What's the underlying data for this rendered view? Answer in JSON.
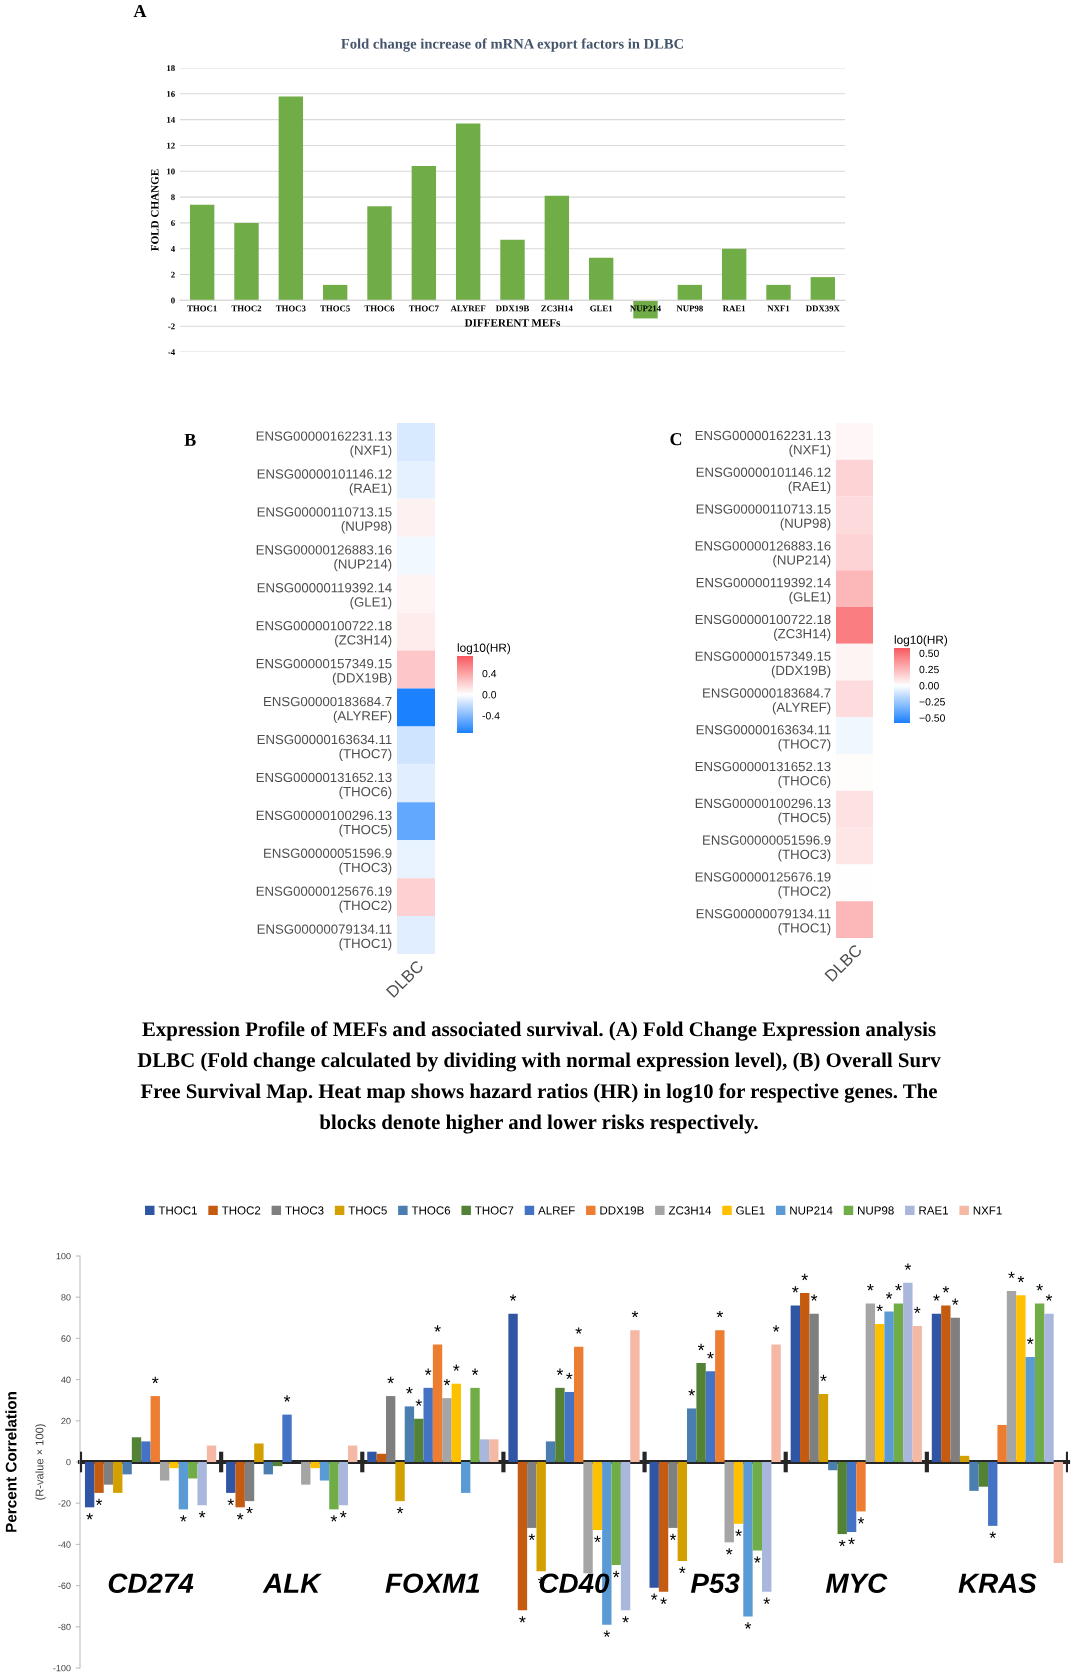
{
  "chart_data": [
    {
      "type": "bar",
      "title": "Fold change increase of mRNA export factors in DLBC",
      "xlabel": "DIFFERENT MEFs",
      "ylabel": "FOLD CHANGE",
      "annotations": [
        "A"
      ],
      "categories": [
        "THOC1",
        "THOC2",
        "THOC3",
        "THOC5",
        "THOC6",
        "THOC7",
        "ALYREF",
        "DDX19B",
        "ZC3H14",
        "GLE1",
        "NUP214",
        "NUP98",
        "RAE1",
        "NXF1",
        "DDX39X"
      ],
      "values": [
        7.4,
        6.0,
        15.8,
        1.2,
        7.3,
        10.4,
        13.7,
        4.7,
        8.1,
        3.3,
        -1.4,
        1.2,
        4.0,
        1.2,
        1.8
      ],
      "color": "#70ad47",
      "ylim": [
        -4,
        18
      ],
      "yticks": [
        -4,
        -2,
        0,
        2,
        4,
        6,
        8,
        10,
        12,
        14,
        16,
        18
      ],
      "grid": "y",
      "legend": false
    },
    {
      "type": "heatmap",
      "annotations": [
        "B"
      ],
      "clabel": "log10(HR)",
      "categories": [
        "DLBC"
      ],
      "y_categories": [
        "ENSG00000162231.13\n(NXF1)",
        "ENSG00000101146.12\n(RAE1)",
        "ENSG00000110713.15\n(NUP98)",
        "ENSG00000126883.16\n(NUP214)",
        "ENSG00000119392.14\n(GLE1)",
        "ENSG00000100722.18\n(ZC3H14)",
        "ENSG00000157349.15\n(DDX19B)",
        "ENSG00000183684.7\n(ALYREF)",
        "ENSG00000163634.11\n(THOC7)",
        "ENSG00000131652.13\n(THOC6)",
        "ENSG00000100296.13\n(THOC5)",
        "ENSG00000051596.9\n(THOC3)",
        "ENSG00000125676.19\n(THOC2)",
        "ENSG00000079134.11\n(THOC1)"
      ],
      "cells": [
        [
          -0.12
        ],
        [
          -0.08
        ],
        [
          0.06
        ],
        [
          -0.04
        ],
        [
          0.05
        ],
        [
          0.08
        ],
        [
          0.25
        ],
        [
          -0.72
        ],
        [
          -0.15
        ],
        [
          -0.1
        ],
        [
          -0.5
        ],
        [
          -0.07
        ],
        [
          0.2
        ],
        [
          -0.1
        ]
      ],
      "clim": [
        -0.73,
        0.73
      ],
      "cticks": [
        -0.4,
        {
          "value": 0,
          "label": "0.0"
        },
        0.4
      ]
    },
    {
      "type": "heatmap",
      "annotations": [
        "C",
        "Expression Profile of MEFs and associated survival. (A) Fold Change Expression analysis",
        "DLBC (Fold change calculated by dividing with normal expression level), (B) Overall Surv",
        "Free Survival Map. Heat map shows hazard ratios (HR) in log10 for respective genes. The",
        "blocks denote higher and lower risks respectively."
      ],
      "clabel": "log10(HR)",
      "categories": [
        "DLBC"
      ],
      "y_categories": [
        "ENSG00000162231.13\n(NXF1)",
        "ENSG00000101146.12\n(RAE1)",
        "ENSG00000110713.15\n(NUP98)",
        "ENSG00000126883.16\n(NUP214)",
        "ENSG00000119392.14\n(GLE1)",
        "ENSG00000100722.18\n(ZC3H14)",
        "ENSG00000157349.15\n(DDX19B)",
        "ENSG00000183684.7\n(ALYREF)",
        "ENSG00000163634.11\n(THOC7)",
        "ENSG00000131652.13\n(THOC6)",
        "ENSG00000100296.13\n(THOC5)",
        "ENSG00000051596.9\n(THOC3)",
        "ENSG00000125676.19\n(THOC2)",
        "ENSG00000079134.11\n(THOC1)"
      ],
      "cells": [
        [
          0.03
        ],
        [
          0.15
        ],
        [
          0.13
        ],
        [
          0.15
        ],
        [
          0.25
        ],
        [
          0.45
        ],
        [
          0.04
        ],
        [
          0.12
        ],
        [
          -0.04
        ],
        [
          0.01
        ],
        [
          0.1
        ],
        [
          0.09
        ],
        [
          0.0
        ],
        [
          0.25
        ]
      ],
      "clim": [
        -0.58,
        0.58
      ],
      "cticks": [
        {
          "value": 0.5,
          "label": "0.50"
        },
        {
          "value": 0.25,
          "label": "0.25"
        },
        {
          "value": 0.0,
          "label": "0.00"
        },
        {
          "value": -0.25,
          "label": "−0.25"
        },
        {
          "value": -0.5,
          "label": "−0.50"
        }
      ]
    },
    {
      "type": "bar",
      "ylabel": "Percent Correlation",
      "annotations": [
        "(R-value × 100)"
      ],
      "legend": "top",
      "categories": [
        "CD274",
        "ALK",
        "FOXM1",
        "CD40",
        "P53",
        "MYC",
        "KRAS"
      ],
      "ylim": [
        -100,
        100
      ],
      "yticks": [
        -100,
        -80,
        -60,
        -40,
        -20,
        0,
        20,
        40,
        60,
        80,
        100
      ],
      "series": [
        {
          "name": "THOC1",
          "color": "#2f55a4",
          "values": [
            -22,
            -15,
            5,
            72,
            -61,
            76,
            72
          ],
          "value_labels": [
            "*",
            "*",
            null,
            "*",
            "*",
            "*",
            "*"
          ]
        },
        {
          "name": "THOC2",
          "color": "#c55a11",
          "values": [
            -15,
            -22,
            4,
            -72,
            -63,
            82,
            76
          ],
          "value_labels": [
            "*",
            "*",
            null,
            "*",
            "*",
            "*",
            "*"
          ]
        },
        {
          "name": "THOC3",
          "color": "#7f7f7f",
          "values": [
            -11,
            -19,
            32,
            -32,
            -32,
            72,
            70
          ],
          "value_labels": [
            null,
            "*",
            "*",
            "*",
            "*",
            "*",
            "*"
          ]
        },
        {
          "name": "THOC5",
          "color": "#d4a000",
          "values": [
            -15,
            9,
            -19,
            -53,
            -48,
            33,
            3
          ],
          "value_labels": [
            null,
            null,
            "*",
            "*",
            "*",
            "*",
            null
          ]
        },
        {
          "name": "THOC6",
          "color": "#4a7eb0",
          "values": [
            -6,
            -6,
            27,
            10,
            26,
            -4,
            -14
          ],
          "value_labels": [
            null,
            null,
            "*",
            null,
            "*",
            null,
            null
          ]
        },
        {
          "name": "THOC7",
          "color": "#548235",
          "values": [
            12,
            -2,
            21,
            36,
            48,
            -35,
            -12
          ],
          "value_labels": [
            null,
            null,
            "*",
            "*",
            "*",
            "*",
            null
          ]
        },
        {
          "name": "ALREF",
          "color": "#4472c4",
          "values": [
            10,
            23,
            36,
            34,
            44,
            -34,
            -31
          ],
          "value_labels": [
            null,
            "*",
            "*",
            "*",
            "*",
            "*",
            "*"
          ]
        },
        {
          "name": "DDX19B",
          "color": "#ed7d31",
          "values": [
            32,
            0,
            57,
            56,
            64,
            -24,
            18
          ],
          "value_labels": [
            "*",
            null,
            "*",
            "*",
            "*",
            "*",
            null
          ]
        },
        {
          "name": "ZC3H14",
          "color": "#a5a5a5",
          "values": [
            -9,
            -11,
            31,
            -54,
            -39,
            77,
            83
          ],
          "value_labels": [
            null,
            null,
            "*",
            null,
            "*",
            "*",
            "*"
          ]
        },
        {
          "name": "GLE1",
          "color": "#ffc000",
          "values": [
            -3,
            -3,
            38,
            -33,
            -30,
            67,
            81
          ],
          "value_labels": [
            null,
            null,
            "*",
            "*",
            "*",
            "*",
            "*"
          ]
        },
        {
          "name": "NUP214",
          "color": "#5b9bd5",
          "values": [
            -23,
            -9,
            -15,
            -79,
            -75,
            73,
            51
          ],
          "value_labels": [
            "*",
            null,
            null,
            "*",
            "*",
            "*",
            "*"
          ]
        },
        {
          "name": "NUP98",
          "color": "#70ad47",
          "values": [
            -8,
            -23,
            36,
            -50,
            -43,
            77,
            77
          ],
          "value_labels": [
            null,
            "*",
            "*",
            "*",
            "*",
            "*",
            "*"
          ]
        },
        {
          "name": "RAE1",
          "color": "#a9b7dc",
          "values": [
            -21,
            -21,
            11,
            -72,
            -63,
            87,
            72
          ],
          "value_labels": [
            "*",
            "*",
            null,
            "*",
            "*",
            "*",
            "*"
          ]
        },
        {
          "name": "NXF1",
          "color": "#f4b8a4",
          "values": [
            8,
            8,
            11,
            64,
            57,
            66,
            -49
          ],
          "value_labels": [
            null,
            null,
            null,
            "*",
            "*",
            "*",
            null
          ]
        }
      ]
    }
  ]
}
